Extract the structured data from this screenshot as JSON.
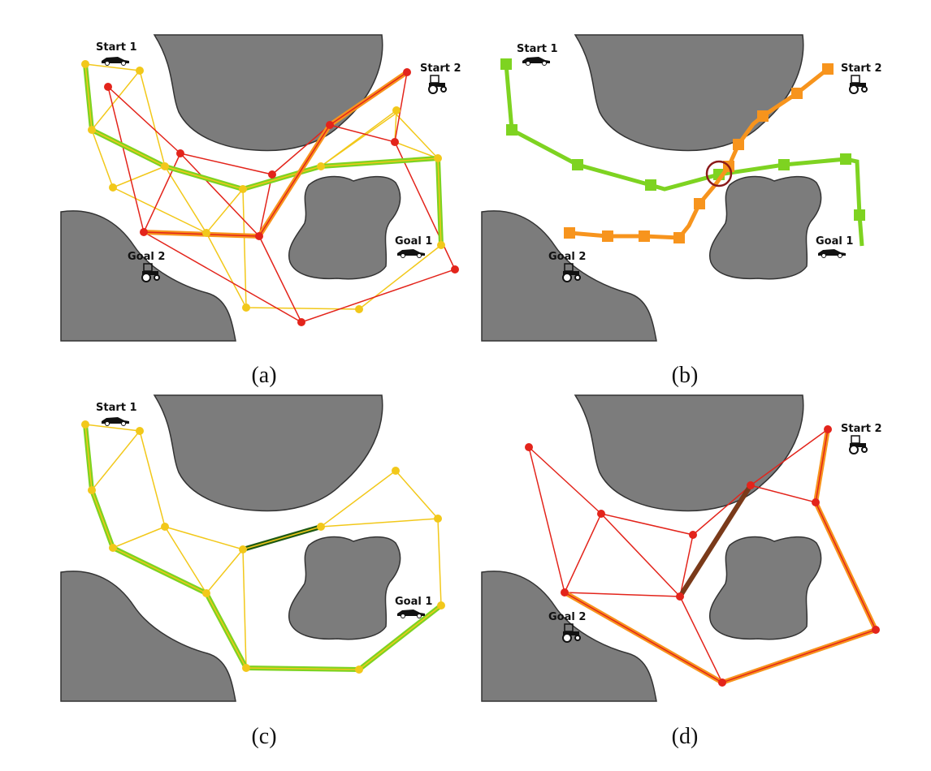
{
  "labels": {
    "start1": "Start 1",
    "start2": "Start 2",
    "goal1": "Goal 1",
    "goal2": "Goal 2"
  },
  "captions": {
    "a": "(a)",
    "b": "(b)",
    "c": "(c)",
    "d": "(d)"
  },
  "colors": {
    "obstacle": "#7c7c7c",
    "obstacle_stroke": "#333333",
    "roadmap_yellow": "#f2c81a",
    "roadmap_red": "#e3241b",
    "path_green": "#7ed321",
    "path_orange": "#f7941d",
    "edge_dark_green": "#1f5a12",
    "edge_dark_brown": "#7a3a1a",
    "conflict_circle": "#8b1a1a"
  },
  "icons": {
    "start1": "car-icon",
    "goal1": "car-icon",
    "start2": "tractor-icon",
    "goal2": "tractor-icon"
  }
}
